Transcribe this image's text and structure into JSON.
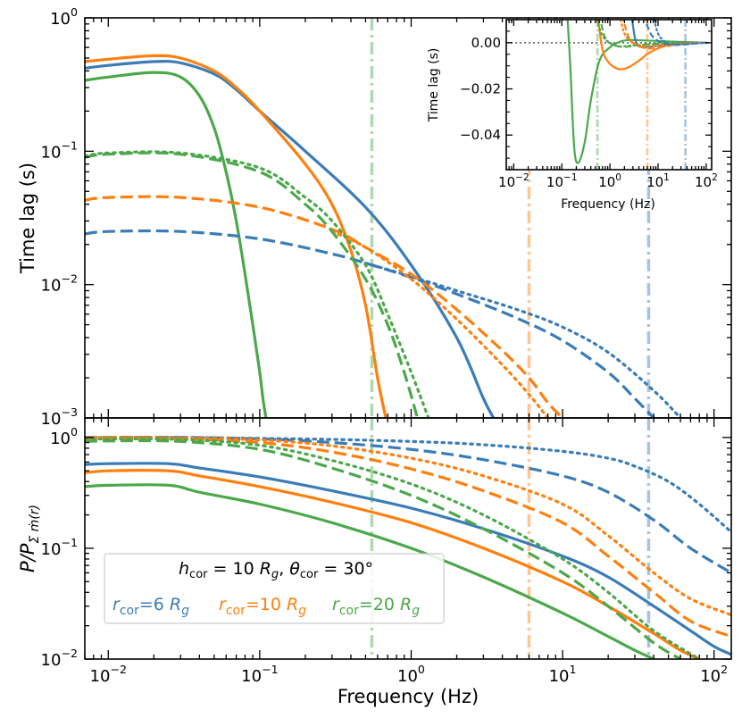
{
  "figure": {
    "xlabel": "Frequency (Hz)",
    "colors": {
      "r6": "#3a7cb8",
      "r10": "#ff7f0e",
      "r20": "#4ba84b"
    }
  },
  "legend": {
    "title": "h_cor = 10 R_g, θ_cor = 30°",
    "title_parts": {
      "h": "h",
      "cor": "cor",
      "eq1": " = 10 ",
      "Rg": "R",
      "g": "g",
      "comma": ", ",
      "theta": "θ",
      "cor2": "cor",
      "eq2": " = 30°"
    },
    "entries": [
      {
        "name": "r_cor=6 R_g",
        "r": "r",
        "sub": "cor",
        "val": "=6 ",
        "R": "R",
        "g": "g",
        "color": "#3a7cb8"
      },
      {
        "name": "r_cor=10 R_g",
        "r": "r",
        "sub": "cor",
        "val": "=10 ",
        "R": "R",
        "g": "g",
        "color": "#ff7f0e"
      },
      {
        "name": "r_cor=20 R_g",
        "r": "r",
        "sub": "cor",
        "val": "=20 ",
        "R": "R",
        "g": "g",
        "color": "#4ba84b"
      }
    ]
  },
  "chart_data": [
    {
      "type": "line",
      "panel": "top",
      "ylabel": "Time lag (s)",
      "xscale": "log",
      "yscale": "log",
      "xlim": [
        0.007,
        130
      ],
      "ylim": [
        0.001,
        1
      ],
      "xtick_labels": [
        {
          "base": "10",
          "exp": "−2"
        },
        {
          "base": "10",
          "exp": "−1"
        },
        {
          "base": "10",
          "exp": "0"
        },
        {
          "base": "10",
          "exp": "1"
        },
        {
          "base": "10",
          "exp": "2"
        }
      ],
      "ytick_labels": [
        {
          "base": "10",
          "exp": "−3"
        },
        {
          "base": "10",
          "exp": "−2"
        },
        {
          "base": "10",
          "exp": "−1"
        },
        {
          "base": "10",
          "exp": "0"
        }
      ],
      "vlines": [
        {
          "x": 0.55,
          "color": "#4ba84b"
        },
        {
          "x": 6,
          "color": "#ff7f0e"
        },
        {
          "x": 37,
          "color": "#3a7cb8"
        }
      ],
      "series": [
        {
          "name": "r6 solid",
          "color": "#3a7cb8",
          "style": "solid",
          "x": [
            0.007,
            0.01,
            0.02,
            0.03,
            0.05,
            0.07,
            0.1,
            0.2,
            0.5,
            1,
            2,
            3,
            3.5
          ],
          "y": [
            0.42,
            0.44,
            0.47,
            0.46,
            0.38,
            0.29,
            0.2,
            0.1,
            0.038,
            0.014,
            0.004,
            0.0014,
            0.001
          ]
        },
        {
          "name": "r10 solid",
          "color": "#ff7f0e",
          "style": "solid",
          "x": [
            0.007,
            0.01,
            0.02,
            0.03,
            0.05,
            0.07,
            0.1,
            0.2,
            0.3,
            0.4,
            0.5,
            0.6,
            0.68
          ],
          "y": [
            0.47,
            0.49,
            0.52,
            0.5,
            0.4,
            0.3,
            0.2,
            0.08,
            0.04,
            0.018,
            0.007,
            0.002,
            0.001
          ]
        },
        {
          "name": "r20 solid",
          "color": "#4ba84b",
          "style": "solid",
          "x": [
            0.007,
            0.01,
            0.02,
            0.03,
            0.04,
            0.05,
            0.06,
            0.07,
            0.08,
            0.09,
            0.1,
            0.105,
            0.11
          ],
          "y": [
            0.34,
            0.36,
            0.39,
            0.36,
            0.26,
            0.15,
            0.07,
            0.03,
            0.012,
            0.005,
            0.0022,
            0.0014,
            0.001
          ]
        },
        {
          "name": "r6 dashed",
          "color": "#3a7cb8",
          "style": "dashed",
          "x": [
            0.007,
            0.01,
            0.03,
            0.1,
            0.3,
            0.5,
            1,
            2,
            5,
            10,
            20,
            30,
            40
          ],
          "y": [
            0.024,
            0.025,
            0.025,
            0.022,
            0.017,
            0.0145,
            0.0113,
            0.0085,
            0.0056,
            0.0038,
            0.0022,
            0.0014,
            0.001
          ]
        },
        {
          "name": "r6 dotted",
          "color": "#3a7cb8",
          "style": "dotted",
          "x": [
            0.5,
            1,
            2,
            5,
            10,
            20,
            40,
            60
          ],
          "y": [
            0.0145,
            0.0115,
            0.009,
            0.0065,
            0.0048,
            0.0031,
            0.0016,
            0.001
          ]
        },
        {
          "name": "r10 dashed",
          "color": "#ff7f0e",
          "style": "dashed",
          "x": [
            0.007,
            0.01,
            0.03,
            0.1,
            0.3,
            0.5,
            1,
            2,
            4,
            6,
            8,
            10
          ],
          "y": [
            0.043,
            0.045,
            0.045,
            0.038,
            0.026,
            0.019,
            0.012,
            0.0065,
            0.0032,
            0.002,
            0.0013,
            0.001
          ]
        },
        {
          "name": "r10 dotted",
          "color": "#ff7f0e",
          "style": "dotted",
          "x": [
            0.3,
            0.5,
            1,
            2,
            4,
            6,
            8
          ],
          "y": [
            0.025,
            0.019,
            0.011,
            0.0055,
            0.0025,
            0.0015,
            0.001
          ]
        },
        {
          "name": "r20 dashed",
          "color": "#4ba84b",
          "style": "dashed",
          "x": [
            0.007,
            0.01,
            0.03,
            0.1,
            0.2,
            0.3,
            0.5,
            0.7,
            0.9,
            1.1
          ],
          "y": [
            0.09,
            0.095,
            0.095,
            0.07,
            0.04,
            0.025,
            0.011,
            0.005,
            0.0022,
            0.001
          ]
        },
        {
          "name": "r20 dotted",
          "color": "#4ba84b",
          "style": "dotted",
          "x": [
            0.007,
            0.01,
            0.03,
            0.1,
            0.2,
            0.3,
            0.5,
            0.7,
            1,
            1.3
          ],
          "y": [
            0.092,
            0.097,
            0.097,
            0.075,
            0.045,
            0.03,
            0.014,
            0.006,
            0.0022,
            0.001
          ]
        }
      ]
    },
    {
      "type": "line",
      "panel": "inset",
      "ylabel": "Time lag (s)",
      "xlabel": "Frequency (Hz)",
      "xscale": "log",
      "yscale": "linear",
      "xlim": [
        0.007,
        130
      ],
      "ylim": [
        -0.055,
        0.01
      ],
      "yticks": [
        0,
        -0.02,
        -0.04
      ],
      "ytick_labels": [
        "0.00",
        "−0.02",
        "−0.04"
      ],
      "xtick_labels": [
        {
          "base": "10",
          "exp": "−2"
        },
        {
          "base": "10",
          "exp": "−1"
        },
        {
          "base": "10",
          "exp": "0"
        },
        {
          "base": "10",
          "exp": "1"
        },
        {
          "base": "10",
          "exp": "2"
        }
      ],
      "hline": {
        "y": 0,
        "color": "#555555"
      },
      "vlines": [
        {
          "x": 0.55,
          "color": "#4ba84b"
        },
        {
          "x": 6,
          "color": "#ff7f0e"
        },
        {
          "x": 37,
          "color": "#3a7cb8"
        }
      ],
      "series": [
        {
          "name": "r20 solid",
          "color": "#4ba84b",
          "style": "solid",
          "x": [
            0.13,
            0.15,
            0.18,
            0.22,
            0.3,
            0.4,
            0.6,
            1,
            2,
            5,
            20,
            100
          ],
          "y": [
            0.012,
            -0.01,
            -0.045,
            -0.052,
            -0.043,
            -0.025,
            -0.008,
            -0.002,
            0.001,
            0.001,
            0.0005,
            0
          ]
        },
        {
          "name": "r10 solid",
          "color": "#ff7f0e",
          "style": "solid",
          "x": [
            0.55,
            0.7,
            0.9,
            1.2,
            1.7,
            2.5,
            4,
            7,
            15,
            40,
            100
          ],
          "y": [
            0.012,
            -0.003,
            -0.008,
            -0.0105,
            -0.0115,
            -0.0105,
            -0.0078,
            -0.004,
            -0.0012,
            -0.0002,
            0
          ]
        },
        {
          "name": "r6 solid",
          "color": "#3a7cb8",
          "style": "solid",
          "x": [
            2.8,
            3.5,
            5,
            8,
            15,
            30,
            100
          ],
          "y": [
            0.012,
            0.0,
            -0.0018,
            -0.0015,
            -0.0008,
            -0.0002,
            0
          ]
        },
        {
          "name": "r20 dotted",
          "color": "#4ba84b",
          "style": "dotted",
          "x": [
            0.5,
            0.7,
            1,
            1.5,
            3,
            8,
            20,
            100
          ],
          "y": [
            0.012,
            0.003,
            0.0,
            -0.0015,
            -0.0012,
            -0.0005,
            -0.0001,
            0
          ]
        },
        {
          "name": "r20 dashed",
          "color": "#4ba84b",
          "style": "dashed",
          "x": [
            0.6,
            0.8,
            1.2,
            2,
            4,
            10,
            30,
            100
          ],
          "y": [
            0.012,
            0.002,
            -0.001,
            -0.0018,
            -0.001,
            -0.0003,
            0,
            0
          ]
        },
        {
          "name": "r10 dotted",
          "color": "#ff7f0e",
          "style": "dotted",
          "x": [
            1.6,
            2,
            3,
            5,
            10,
            25,
            100
          ],
          "y": [
            0.012,
            0.004,
            0.0,
            -0.0015,
            -0.0012,
            -0.0004,
            0
          ]
        },
        {
          "name": "r10 dashed",
          "color": "#ff7f0e",
          "style": "dashed",
          "x": [
            1.8,
            2.5,
            4,
            7,
            15,
            40,
            100
          ],
          "y": [
            0.012,
            0.002,
            -0.0015,
            -0.0025,
            -0.0015,
            -0.0004,
            0
          ]
        },
        {
          "name": "r6 dotted",
          "color": "#3a7cb8",
          "style": "dotted",
          "x": [
            8,
            10,
            15,
            25,
            50,
            100
          ],
          "y": [
            0.012,
            0.004,
            0.0,
            -0.0006,
            -0.0004,
            0
          ]
        },
        {
          "name": "r6 dashed",
          "color": "#3a7cb8",
          "style": "dashed",
          "x": [
            5,
            7,
            10,
            18,
            35,
            70,
            130
          ],
          "y": [
            0.012,
            0.004,
            0.0008,
            -0.0008,
            -0.0008,
            -0.0002,
            0
          ]
        }
      ]
    },
    {
      "type": "line",
      "panel": "bottom",
      "ylabel": "P/P_Σ ṁ(r)",
      "ylabel_parts": {
        "a": "P/P",
        "sub": "Σ ṁ(r)"
      },
      "xlabel": "Frequency (Hz)",
      "xscale": "log",
      "yscale": "log",
      "xlim": [
        0.007,
        130
      ],
      "ylim": [
        0.01,
        1.5
      ],
      "xtick_labels": [
        {
          "base": "10",
          "exp": "−2"
        },
        {
          "base": "10",
          "exp": "−1"
        },
        {
          "base": "10",
          "exp": "0"
        },
        {
          "base": "10",
          "exp": "1"
        },
        {
          "base": "10",
          "exp": "2"
        }
      ],
      "ytick_labels": [
        {
          "base": "10",
          "exp": "−2"
        },
        {
          "base": "10",
          "exp": "−1"
        },
        {
          "base": "10",
          "exp": "0"
        }
      ],
      "vlines": [
        {
          "x": 0.55,
          "color": "#4ba84b"
        },
        {
          "x": 6,
          "color": "#ff7f0e"
        },
        {
          "x": 37,
          "color": "#3a7cb8"
        }
      ],
      "series": [
        {
          "name": "r6 solid",
          "color": "#3a7cb8",
          "style": "solid",
          "x": [
            0.007,
            0.01,
            0.025,
            0.04,
            0.1,
            0.3,
            1,
            3,
            10,
            20,
            40,
            70,
            100,
            130
          ],
          "y": [
            0.57,
            0.58,
            0.58,
            0.53,
            0.44,
            0.33,
            0.23,
            0.15,
            0.085,
            0.055,
            0.03,
            0.018,
            0.013,
            0.011
          ]
        },
        {
          "name": "r10 solid",
          "color": "#ff7f0e",
          "style": "solid",
          "x": [
            0.007,
            0.01,
            0.025,
            0.04,
            0.1,
            0.3,
            1,
            3,
            10,
            20,
            40,
            60,
            80
          ],
          "y": [
            0.48,
            0.5,
            0.5,
            0.45,
            0.36,
            0.26,
            0.17,
            0.1,
            0.05,
            0.03,
            0.017,
            0.012,
            0.01
          ]
        },
        {
          "name": "r20 solid",
          "color": "#4ba84b",
          "style": "solid",
          "x": [
            0.007,
            0.01,
            0.025,
            0.04,
            0.1,
            0.3,
            1,
            3,
            10,
            20,
            30,
            40
          ],
          "y": [
            0.36,
            0.37,
            0.37,
            0.32,
            0.25,
            0.17,
            0.1,
            0.055,
            0.026,
            0.016,
            0.012,
            0.01
          ]
        },
        {
          "name": "r6 dotted",
          "color": "#3a7cb8",
          "style": "dotted",
          "x": [
            0.007,
            0.01,
            0.03,
            0.1,
            0.3,
            1,
            3,
            10,
            20,
            30,
            50,
            80,
            130
          ],
          "y": [
            1.0,
            1.0,
            1.0,
            0.98,
            0.96,
            0.92,
            0.86,
            0.75,
            0.65,
            0.55,
            0.4,
            0.25,
            0.14
          ]
        },
        {
          "name": "r6 dashed",
          "color": "#3a7cb8",
          "style": "dashed",
          "x": [
            0.007,
            0.01,
            0.03,
            0.1,
            0.3,
            1,
            3,
            10,
            20,
            40,
            70,
            130
          ],
          "y": [
            1.0,
            1.0,
            1.0,
            0.97,
            0.9,
            0.78,
            0.63,
            0.45,
            0.32,
            0.18,
            0.1,
            0.06
          ]
        },
        {
          "name": "r10 dotted",
          "color": "#ff7f0e",
          "style": "dotted",
          "x": [
            0.007,
            0.01,
            0.03,
            0.1,
            0.3,
            1,
            3,
            10,
            20,
            40,
            70,
            130
          ],
          "y": [
            1.0,
            1.0,
            0.99,
            0.95,
            0.84,
            0.65,
            0.45,
            0.25,
            0.13,
            0.06,
            0.035,
            0.025
          ]
        },
        {
          "name": "r10 dashed",
          "color": "#ff7f0e",
          "style": "dashed",
          "x": [
            0.007,
            0.01,
            0.03,
            0.1,
            0.3,
            1,
            3,
            10,
            20,
            40,
            70,
            130
          ],
          "y": [
            0.97,
            0.98,
            0.97,
            0.9,
            0.74,
            0.52,
            0.33,
            0.17,
            0.085,
            0.04,
            0.022,
            0.016
          ]
        },
        {
          "name": "r20 dotted",
          "color": "#4ba84b",
          "style": "dotted",
          "x": [
            0.007,
            0.01,
            0.03,
            0.1,
            0.3,
            1,
            3,
            10,
            20,
            40,
            80
          ],
          "y": [
            0.96,
            0.97,
            0.96,
            0.85,
            0.62,
            0.38,
            0.2,
            0.08,
            0.04,
            0.018,
            0.01
          ]
        },
        {
          "name": "r20 dashed",
          "color": "#4ba84b",
          "style": "dashed",
          "x": [
            0.007,
            0.01,
            0.03,
            0.1,
            0.3,
            1,
            3,
            10,
            20,
            40,
            60
          ],
          "y": [
            0.92,
            0.93,
            0.92,
            0.78,
            0.53,
            0.3,
            0.15,
            0.06,
            0.03,
            0.014,
            0.01
          ]
        }
      ]
    }
  ]
}
